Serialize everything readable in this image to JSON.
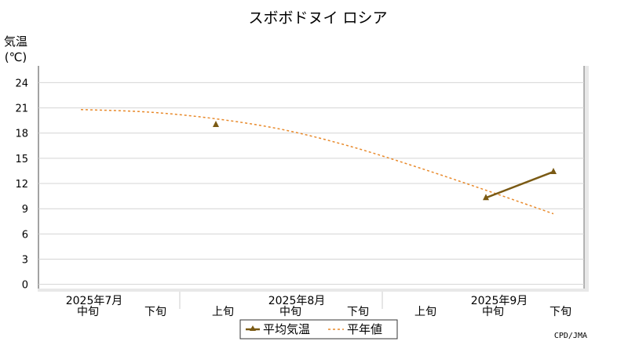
{
  "chart_data": {
    "type": "line",
    "title": "スボボドヌイ ロシア",
    "ylabel_line1": "気温",
    "ylabel_line2": "(℃)",
    "yticks": [
      0,
      3,
      6,
      9,
      12,
      15,
      18,
      21,
      24
    ],
    "ylim": [
      -0.5,
      26
    ],
    "grid": true,
    "months": [
      "2025年7月",
      "2025年8月",
      "2025年9月"
    ],
    "periods": [
      "中旬",
      "下旬",
      "上旬",
      "中旬",
      "下旬",
      "上旬",
      "中旬",
      "下旬"
    ],
    "x": [
      "2025年7月中旬",
      "2025年7月下旬",
      "2025年8月上旬",
      "2025年8月中旬",
      "2025年8月下旬",
      "2025年9月上旬",
      "2025年9月中旬",
      "2025年9月下旬"
    ],
    "series": [
      {
        "name": "平均気温",
        "color": "#7a5a14",
        "style": "solid-triangle",
        "values": [
          null,
          null,
          19.0,
          null,
          null,
          null,
          10.3,
          13.4
        ]
      },
      {
        "name": "平年値",
        "color": "#e8892a",
        "style": "dashed",
        "values": [
          20.8,
          20.5,
          19.7,
          18.4,
          16.4,
          13.9,
          11.2,
          8.4
        ]
      }
    ],
    "legend_position": "bottom-center",
    "credit": "CPD/JMA"
  }
}
